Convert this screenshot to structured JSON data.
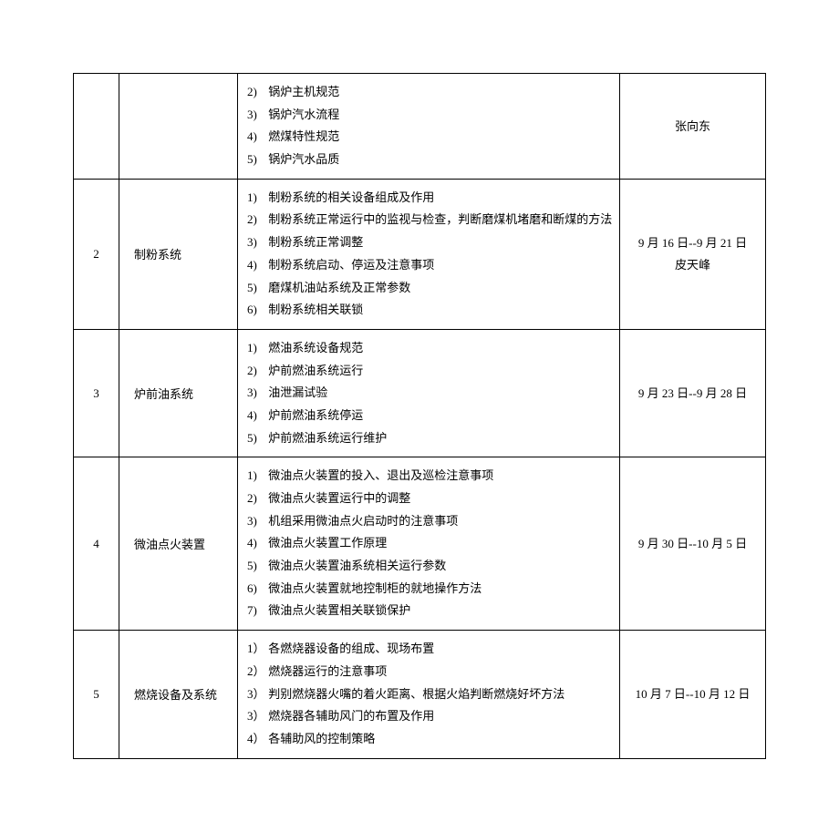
{
  "rows": [
    {
      "num": "",
      "name": "",
      "items": [
        {
          "n": "2)",
          "t": "锅炉主机规范"
        },
        {
          "n": "3)",
          "t": "锅炉汽水流程"
        },
        {
          "n": "4)",
          "t": "燃煤特性规范"
        },
        {
          "n": "5)",
          "t": "锅炉汽水品质"
        }
      ],
      "date_lines": [
        "张向东"
      ]
    },
    {
      "num": "2",
      "name": "制粉系统",
      "items": [
        {
          "n": "1)",
          "t": "制粉系统的相关设备组成及作用"
        },
        {
          "n": "2)",
          "t": "制粉系统正常运行中的监视与检查，判断磨煤机堵磨和断煤的方法"
        },
        {
          "n": "3)",
          "t": "制粉系统正常调整"
        },
        {
          "n": "4)",
          "t": "制粉系统启动、停运及注意事项"
        },
        {
          "n": "5)",
          "t": "磨煤机油站系统及正常参数"
        },
        {
          "n": "6)",
          "t": "制粉系统相关联锁"
        }
      ],
      "date_lines": [
        "9 月 16 日--9 月 21 日",
        "皮天峰"
      ]
    },
    {
      "num": "3",
      "name": "炉前油系统",
      "items": [
        {
          "n": "1)",
          "t": "燃油系统设备规范"
        },
        {
          "n": "2)",
          "t": "炉前燃油系统运行"
        },
        {
          "n": "3)",
          "t": "油泄漏试验"
        },
        {
          "n": "4)",
          "t": "炉前燃油系统停运"
        },
        {
          "n": "5)",
          "t": "炉前燃油系统运行维护"
        }
      ],
      "date_lines": [
        "9 月 23 日--9 月 28 日"
      ]
    },
    {
      "num": "4",
      "name": "微油点火装置",
      "items": [
        {
          "n": "1)",
          "t": "微油点火装置的投入、退出及巡检注意事项"
        },
        {
          "n": "2)",
          "t": "微油点火装置运行中的调整"
        },
        {
          "n": "3)",
          "t": "机组采用微油点火启动时的注意事项"
        },
        {
          "n": "4)",
          "t": "微油点火装置工作原理"
        },
        {
          "n": "5)",
          "t": "微油点火装置油系统相关运行参数"
        },
        {
          "n": "6)",
          "t": "微油点火装置就地控制柜的就地操作方法"
        },
        {
          "n": "7)",
          "t": "微油点火装置相关联锁保护"
        }
      ],
      "date_lines": [
        "9 月 30 日--10 月 5 日"
      ]
    },
    {
      "num": "5",
      "name": "燃烧设备及系统",
      "items": [
        {
          "n": "1）",
          "t": "各燃烧器设备的组成、现场布置"
        },
        {
          "n": "2）",
          "t": "燃烧器运行的注意事项"
        },
        {
          "n": "3）",
          "t": " 判别燃烧器火嘴的着火距离、根据火焰判断燃烧好坏方法"
        },
        {
          "n": "3）",
          "t": "燃烧器各辅助风门的布置及作用"
        },
        {
          "n": "4）",
          "t": "各辅助风的控制策略"
        }
      ],
      "date_lines": [
        "10 月 7 日--10 月 12 日"
      ]
    }
  ]
}
